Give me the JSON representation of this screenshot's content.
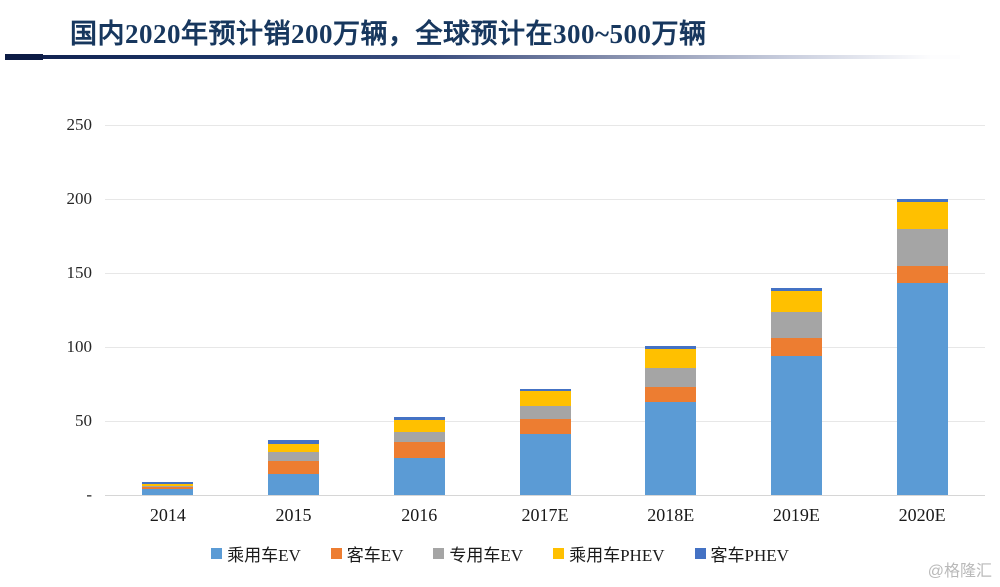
{
  "header": {
    "title": "国内2020年预计销200万辆，全球预计在300~500万辆"
  },
  "watermark": "@格隆汇",
  "colors": {
    "title": "#17375E",
    "gridline": "#e7e7e7"
  },
  "chart_data": {
    "type": "bar",
    "stacked": true,
    "title": "国内2020年预计销200万辆，全球预计在300~500万辆",
    "unit": "万辆",
    "categories": [
      "2014",
      "2015",
      "2016",
      "2017E",
      "2018E",
      "2019E",
      "2020E"
    ],
    "series": [
      {
        "name": "乘用车EV",
        "color": "#5B9BD5",
        "values": [
          4,
          14,
          25,
          41,
          63,
          94,
          143
        ]
      },
      {
        "name": "客车EV",
        "color": "#ED7D31",
        "values": [
          1.5,
          9,
          10.5,
          10.5,
          10,
          12,
          12
        ]
      },
      {
        "name": "专用车EV",
        "color": "#A5A5A5",
        "values": [
          0.5,
          6,
          7,
          8.5,
          13,
          18,
          25
        ]
      },
      {
        "name": "乘用车PHEV",
        "color": "#FFC000",
        "values": [
          1.5,
          5.5,
          8,
          10,
          12.5,
          14,
          18
        ]
      },
      {
        "name": "客车PHEV",
        "color": "#4472C4",
        "values": [
          1,
          2.5,
          2,
          1.5,
          2,
          2,
          2
        ]
      }
    ],
    "ylim": [
      0,
      250
    ],
    "y_ticks": [
      {
        "label": "250",
        "value": 250
      },
      {
        "label": "200",
        "value": 200
      },
      {
        "label": "150",
        "value": 150
      },
      {
        "label": "100",
        "value": 100
      },
      {
        "label": "50",
        "value": 50
      },
      {
        "label": "-",
        "value": 0
      }
    ],
    "grid": "horizontal",
    "legend_position": "bottom"
  }
}
